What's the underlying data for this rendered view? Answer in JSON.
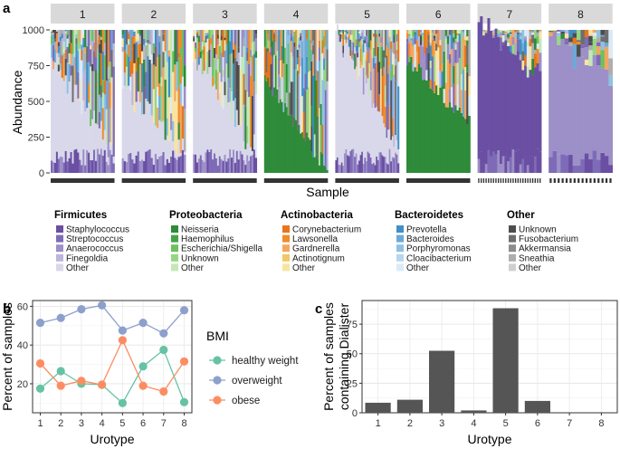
{
  "colors": {
    "firmicutes": [
      "#6a4fa3",
      "#7e6bb7",
      "#9d8fc7",
      "#bcb6da",
      "#d9d8ea"
    ],
    "proteobacteria": [
      "#2e8b3a",
      "#45a447",
      "#6dc15f",
      "#97d585",
      "#c4e8b5"
    ],
    "actinobacteria": [
      "#e6761a",
      "#f08c2a",
      "#f4a660",
      "#f2c766",
      "#f9e4a0"
    ],
    "bacteroidetes": [
      "#3f8fc9",
      "#6aaad8",
      "#8fc1e3",
      "#b7d7ee",
      "#dceaf6"
    ],
    "other": [
      "#4d4d4d",
      "#6e6e6e",
      "#8c8c8c",
      "#aeaeae",
      "#cfcfcf"
    ],
    "bmi_healthy": "#66c2a5",
    "bmi_overweight": "#8da0cb",
    "bmi_obese": "#fc8d62",
    "bar": "#555555"
  },
  "panel_a": {
    "label": "a",
    "chart_data": {
      "type": "bar",
      "stacked": true,
      "title": "",
      "xlabel": "Sample",
      "ylabel": "Abundance",
      "ylim": [
        0,
        1000
      ],
      "yticks": [
        "0",
        "250",
        "500",
        "750",
        "1000"
      ],
      "facets": [
        "1",
        "2",
        "3",
        "4",
        "5",
        "6",
        "7",
        "8"
      ],
      "samples_per_facet": [
        36,
        33,
        37,
        41,
        44,
        33,
        26,
        16
      ],
      "dominant_taxon": [
        "Firmicutes / Other",
        "Firmicutes / Other",
        "Firmicutes / Other",
        "Proteobacteria / Neisseria",
        "Firmicutes / Other",
        "Proteobacteria / Neisseria",
        "Firmicutes / Staphylococcus",
        "Firmicutes / Anaerococcus"
      ],
      "dominant_share_trend": [
        [
          0.7,
          0.05
        ],
        [
          0.5,
          0.03
        ],
        [
          0.7,
          0.05
        ],
        [
          0.65,
          0.03
        ],
        [
          0.9,
          0.08
        ],
        [
          0.8,
          0.35
        ],
        [
          0.95,
          0.55
        ],
        [
          0.85,
          0.55
        ]
      ]
    },
    "legend": [
      {
        "phylum": "Firmicutes",
        "key": "firmicutes",
        "taxa": [
          "Staphylococcus",
          "Streptococcus",
          "Anaerococcus",
          "Finegoldia",
          "Other"
        ]
      },
      {
        "phylum": "Proteobacteria",
        "key": "proteobacteria",
        "taxa": [
          "Neisseria",
          "Haemophilus",
          "Escherichia/Shigella",
          "Unknown",
          "Other"
        ]
      },
      {
        "phylum": "Actinobacteria",
        "key": "actinobacteria",
        "taxa": [
          "Corynebacterium",
          "Lawsonella",
          "Gardnerella",
          "Actinotignum",
          "Other"
        ]
      },
      {
        "phylum": "Bacteroidetes",
        "key": "bacteroidetes",
        "taxa": [
          "Prevotella",
          "Bacteroides",
          "Porphyromonas",
          "Cloacibacterium",
          "Other"
        ]
      },
      {
        "phylum": "Other",
        "key": "other",
        "taxa": [
          "Unknown",
          "Fusobacterium",
          "Akkermansia",
          "Sneathia",
          "Other"
        ]
      }
    ]
  },
  "panel_b": {
    "label": "b",
    "legend_title": "BMI",
    "chart_data": {
      "type": "line",
      "x": [
        1,
        2,
        3,
        4,
        5,
        6,
        7,
        8
      ],
      "xlabel": "Urotype",
      "ylabel": "Percent of samples",
      "ylim": [
        5,
        63
      ],
      "yticks": [
        20,
        40,
        60
      ],
      "series": [
        {
          "name": "healthy weight",
          "color_key": "bmi_healthy",
          "values": [
            17.5,
            26.5,
            20,
            19.5,
            10,
            29,
            37.5,
            10.5
          ]
        },
        {
          "name": "overweight",
          "color_key": "bmi_overweight",
          "values": [
            51.5,
            54,
            58.5,
            60.5,
            47.5,
            51.5,
            46,
            58
          ]
        },
        {
          "name": "obese",
          "color_key": "bmi_obese",
          "values": [
            30.5,
            19,
            21.5,
            19.5,
            42.5,
            19,
            16,
            31.5
          ]
        }
      ]
    }
  },
  "panel_c": {
    "label": "c",
    "chart_data": {
      "type": "bar",
      "categories": [
        "1",
        "2",
        "3",
        "4",
        "5",
        "6",
        "7",
        "8"
      ],
      "values": [
        8.5,
        11,
        52.5,
        2,
        88.5,
        10,
        0,
        0
      ],
      "xlabel": "Urotype",
      "ylabel": "Percent of samples containing Dialister",
      "ylabel_lines": [
        "Percent of samples",
        "containing Dialister"
      ],
      "ylim": [
        0,
        95
      ],
      "yticks": [
        0,
        25,
        50,
        75
      ]
    }
  }
}
